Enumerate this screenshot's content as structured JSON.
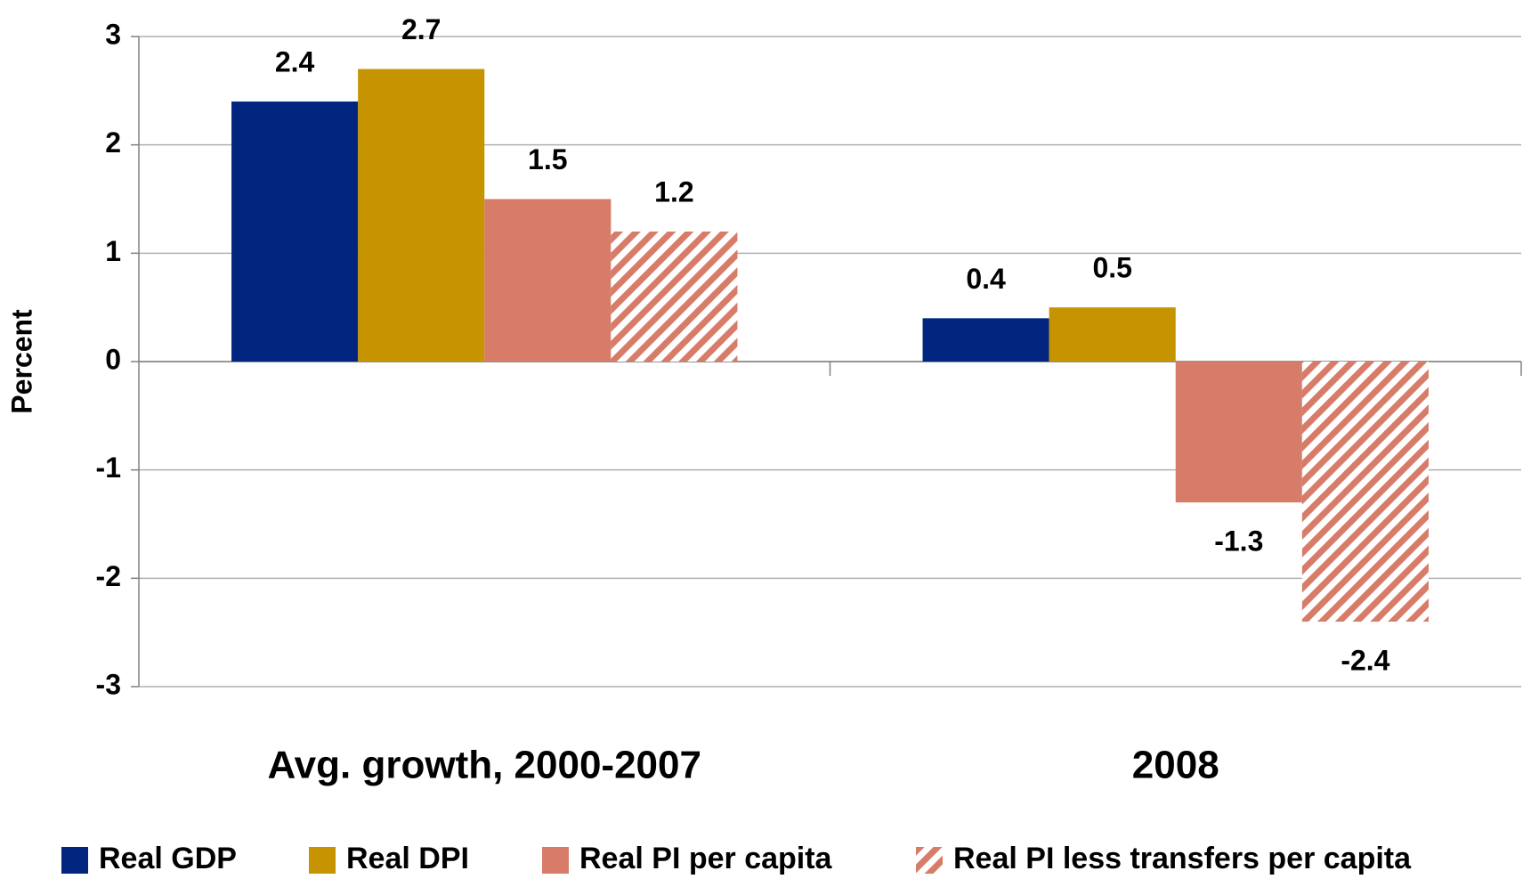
{
  "chart_data": {
    "type": "bar",
    "y_label": "Percent",
    "categories": [
      "Avg. growth, 2000-2007",
      "2008"
    ],
    "series": [
      {
        "name": "Real GDP",
        "color": "#022580",
        "values": [
          2.4,
          0.4
        ]
      },
      {
        "name": "Real DPI",
        "color": "#c59400",
        "values": [
          2.7,
          0.5
        ]
      },
      {
        "name": "Real PI per capita",
        "color": "#d77c68",
        "values": [
          1.5,
          -1.3
        ]
      },
      {
        "name": "Real PI less transfers per capita",
        "color": "#d77c68",
        "pattern": "hatch",
        "values": [
          1.2,
          -2.4
        ]
      }
    ],
    "ylim": [
      -3,
      3
    ],
    "yticks": [
      -3,
      -2,
      -1,
      0,
      1,
      2,
      3
    ],
    "grid": true,
    "legend": "bottom"
  }
}
